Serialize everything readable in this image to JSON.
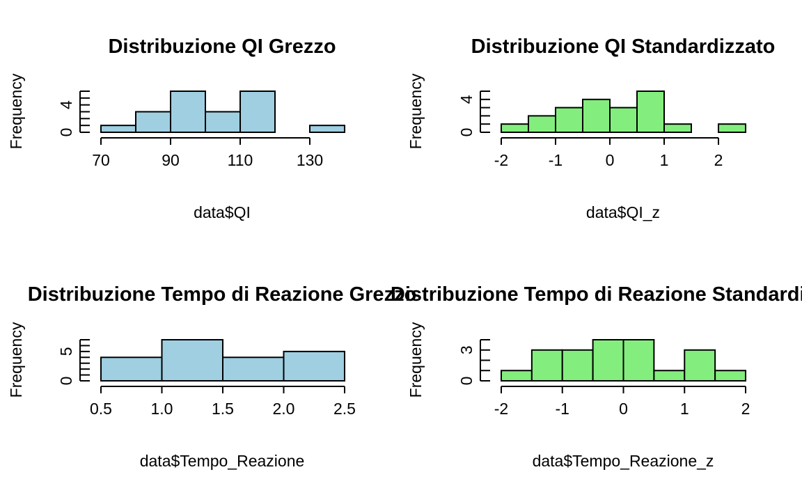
{
  "colors": {
    "raw": "#9FCFE1",
    "std": "#83EE7E"
  },
  "chart_data": [
    {
      "type": "bar",
      "title": "Distribuzione QI Grezzo",
      "xlabel": "data$QI",
      "ylabel": "Frequency",
      "fill": "raw",
      "bin_edges": [
        70,
        80,
        90,
        100,
        110,
        120,
        130,
        140
      ],
      "values": [
        1,
        3,
        6,
        3,
        6,
        0,
        1
      ],
      "xlim": [
        70,
        140
      ],
      "xticks": [
        "70",
        "90",
        "110",
        "130"
      ],
      "xtick_values": [
        70,
        90,
        110,
        130
      ],
      "ylim": [
        0,
        6
      ],
      "yticks": [
        "0",
        "4"
      ],
      "ytick_values": [
        0,
        4
      ]
    },
    {
      "type": "bar",
      "title": "Distribuzione QI Standardizzato",
      "xlabel": "data$QI_z",
      "ylabel": "Frequency",
      "fill": "std",
      "bin_edges": [
        -2,
        -1.5,
        -1,
        -0.5,
        0,
        0.5,
        1,
        1.5,
        2,
        2.5
      ],
      "values": [
        1,
        2,
        3,
        4,
        3,
        5,
        1,
        0,
        1
      ],
      "xlim": [
        -2,
        2.5
      ],
      "xticks": [
        "-2",
        "-1",
        "0",
        "1",
        "2"
      ],
      "xtick_values": [
        -2,
        -1,
        0,
        1,
        2
      ],
      "ylim": [
        0,
        5
      ],
      "yticks": [
        "0",
        "4"
      ],
      "ytick_values": [
        0,
        4
      ]
    },
    {
      "type": "bar",
      "title": "Distribuzione Tempo di Reazione Grezzo",
      "xlabel": "data$Tempo_Reazione",
      "ylabel": "Frequency",
      "fill": "raw",
      "bin_edges": [
        0.5,
        1.0,
        1.5,
        2.0,
        2.5
      ],
      "values": [
        4,
        7,
        4,
        5
      ],
      "xlim": [
        0.5,
        2.5
      ],
      "xticks": [
        "0.5",
        "1.0",
        "1.5",
        "2.0",
        "2.5"
      ],
      "xtick_values": [
        0.5,
        1.0,
        1.5,
        2.0,
        2.5
      ],
      "ylim": [
        0,
        7
      ],
      "yticks": [
        "0",
        "5"
      ],
      "ytick_values": [
        0,
        5
      ]
    },
    {
      "type": "bar",
      "title": "Distribuzione Tempo di Reazione Standardizzato",
      "xlabel": "data$Tempo_Reazione_z",
      "ylabel": "Frequency",
      "fill": "std",
      "bin_edges": [
        -2,
        -1.5,
        -1,
        -0.5,
        0,
        0.5,
        1,
        1.5,
        2
      ],
      "values": [
        1,
        3,
        3,
        4,
        4,
        1,
        3,
        1
      ],
      "xlim": [
        -2,
        2
      ],
      "xticks": [
        "-2",
        "-1",
        "0",
        "1",
        "2"
      ],
      "xtick_values": [
        -2,
        -1,
        0,
        1,
        2
      ],
      "ylim": [
        0,
        4
      ],
      "yticks": [
        "0",
        "3"
      ],
      "ytick_values": [
        0,
        3
      ]
    }
  ]
}
